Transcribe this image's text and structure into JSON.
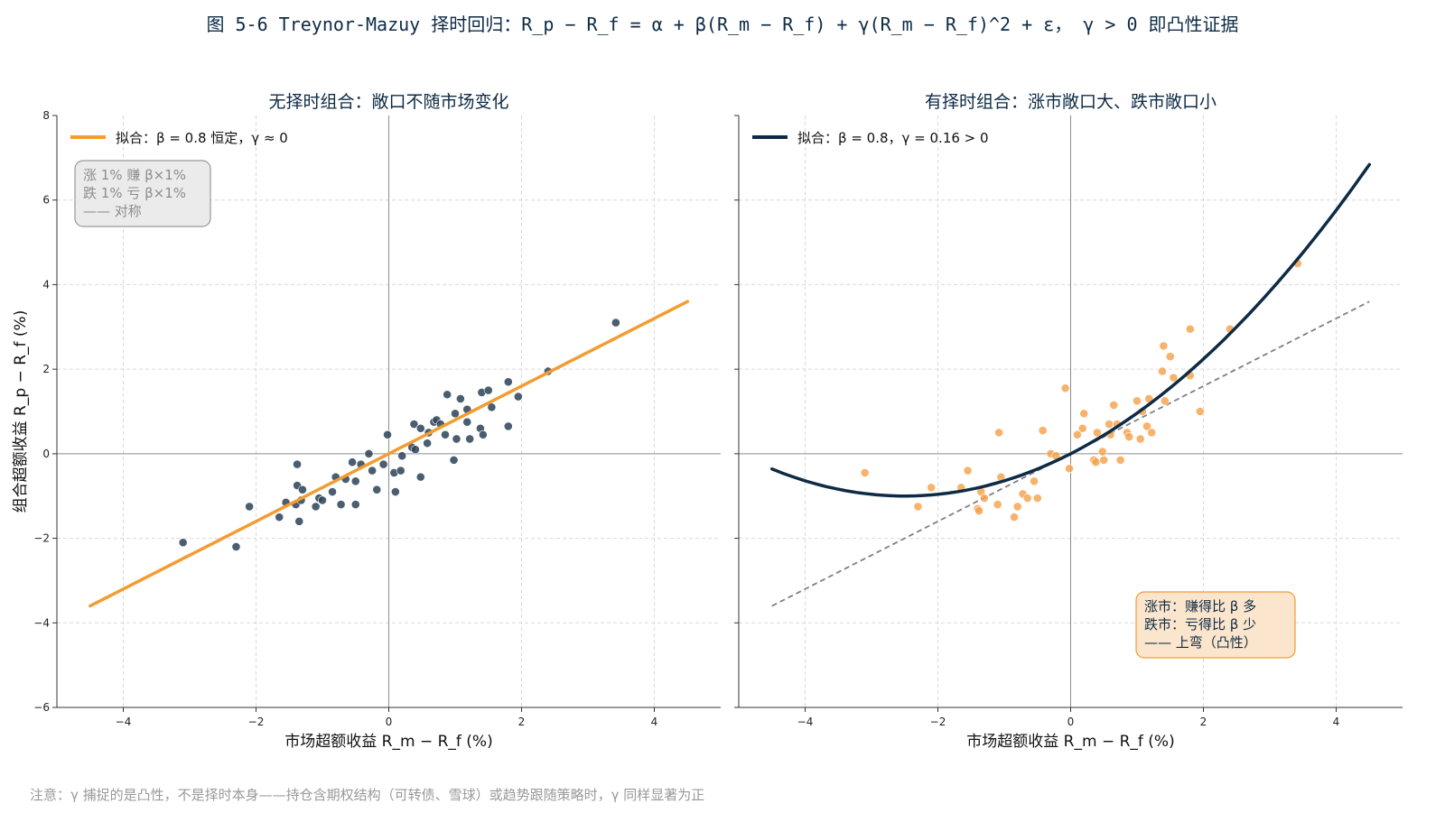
{
  "suptitle": "图 5-6 Treynor-Mazuy 择时回归：R_p − R_f = α + β(R_m − R_f) + γ(R_m − R_f)^2 + ε， γ > 0 即凸性证据",
  "footnote": "注意：γ 捕捉的是凸性，不是择时本身——持仓含期权结构（可转债、雪球）或趋势跟随策略时，γ 同样显著为正",
  "colors": {
    "title": "#0d2b45",
    "orange": "#f39c31",
    "navy": "#0d2b45",
    "points_left": "#2c4257",
    "points_right": "#f5a046",
    "grid": "#d9d9d9",
    "axis_zero": "#8c8c8c",
    "dashed": "#808080",
    "footnote": "#999999"
  },
  "chart_data": [
    {
      "type": "scatter",
      "title": "无择时组合：敞口不随市场变化",
      "xlabel": "市场超额收益 R_m − R_f (%)",
      "ylabel": "组合超额收益 R_p − R_f (%)",
      "xlim": [
        -5,
        5
      ],
      "ylim": [
        -6,
        8
      ],
      "xticks": [
        "−4",
        "−2",
        "0",
        "2",
        "4"
      ],
      "yticks": [
        "−6",
        "−4",
        "−2",
        "0",
        "2",
        "4",
        "6",
        "8"
      ],
      "grid": true,
      "legend_position": "top-left",
      "fit": {
        "name": "拟合：β = 0.8 恒定，γ ≈ 0",
        "beta": 0.8,
        "gamma": 0,
        "x_range": [
          -4.5,
          4.5
        ]
      },
      "annotation": [
        "涨 1% 赚 β×1%",
        "跌 1% 亏 β×1%",
        "—— 对称"
      ],
      "points": [
        {
          "x": -3.1,
          "y": -2.1
        },
        {
          "x": -2.3,
          "y": -2.2
        },
        {
          "x": -2.1,
          "y": -1.25
        },
        {
          "x": -1.65,
          "y": -1.5
        },
        {
          "x": -1.55,
          "y": -1.15
        },
        {
          "x": -1.4,
          "y": -1.2
        },
        {
          "x": -1.38,
          "y": -0.75
        },
        {
          "x": -1.35,
          "y": -1.6
        },
        {
          "x": -1.32,
          "y": -1.1
        },
        {
          "x": -1.3,
          "y": -0.85
        },
        {
          "x": -1.38,
          "y": -0.25
        },
        {
          "x": -1.1,
          "y": -1.25
        },
        {
          "x": -1.05,
          "y": -1.05
        },
        {
          "x": -1.0,
          "y": -1.1
        },
        {
          "x": -0.85,
          "y": -0.9
        },
        {
          "x": -0.8,
          "y": -0.55
        },
        {
          "x": -0.72,
          "y": -1.2
        },
        {
          "x": -0.65,
          "y": -0.6
        },
        {
          "x": -0.55,
          "y": -0.2
        },
        {
          "x": -0.5,
          "y": -1.2
        },
        {
          "x": -0.5,
          "y": -0.65
        },
        {
          "x": -0.42,
          "y": -0.25
        },
        {
          "x": -0.3,
          "y": 0.0
        },
        {
          "x": -0.25,
          "y": -0.4
        },
        {
          "x": -0.18,
          "y": -0.85
        },
        {
          "x": -0.08,
          "y": -0.25
        },
        {
          "x": -0.02,
          "y": 0.45
        },
        {
          "x": 0.08,
          "y": -0.45
        },
        {
          "x": 0.1,
          "y": -0.9
        },
        {
          "x": 0.18,
          "y": -0.4
        },
        {
          "x": 0.2,
          "y": -0.05
        },
        {
          "x": 0.35,
          "y": 0.15
        },
        {
          "x": 0.38,
          "y": 0.7
        },
        {
          "x": 0.4,
          "y": 0.1
        },
        {
          "x": 0.48,
          "y": 0.6
        },
        {
          "x": 0.48,
          "y": -0.55
        },
        {
          "x": 0.58,
          "y": 0.25
        },
        {
          "x": 0.6,
          "y": 0.5
        },
        {
          "x": 0.68,
          "y": 0.75
        },
        {
          "x": 0.72,
          "y": 0.8
        },
        {
          "x": 0.78,
          "y": 0.7
        },
        {
          "x": 0.85,
          "y": 0.45
        },
        {
          "x": 0.88,
          "y": 1.4
        },
        {
          "x": 0.98,
          "y": -0.15
        },
        {
          "x": 1.0,
          "y": 0.95
        },
        {
          "x": 1.02,
          "y": 0.35
        },
        {
          "x": 1.08,
          "y": 1.3
        },
        {
          "x": 1.18,
          "y": 1.05
        },
        {
          "x": 1.18,
          "y": 0.75
        },
        {
          "x": 1.22,
          "y": 0.35
        },
        {
          "x": 1.38,
          "y": 0.6
        },
        {
          "x": 1.4,
          "y": 1.45
        },
        {
          "x": 1.42,
          "y": 0.45
        },
        {
          "x": 1.5,
          "y": 1.5
        },
        {
          "x": 1.55,
          "y": 1.1
        },
        {
          "x": 1.8,
          "y": 1.7
        },
        {
          "x": 1.8,
          "y": 0.65
        },
        {
          "x": 1.95,
          "y": 1.35
        },
        {
          "x": 2.4,
          "y": 1.95
        },
        {
          "x": 3.42,
          "y": 3.1
        }
      ]
    },
    {
      "type": "scatter",
      "title": "有择时组合：涨市敞口大、跌市敞口小",
      "xlabel": "市场超额收益 R_m − R_f (%)",
      "ylabel": "",
      "xlim": [
        -5,
        5
      ],
      "ylim": [
        -6,
        8
      ],
      "xticks": [
        "−4",
        "−2",
        "0",
        "2",
        "4"
      ],
      "grid": true,
      "legend_position": "top-left",
      "fit": {
        "name": "拟合：β = 0.8，γ = 0.16 > 0",
        "beta": 0.8,
        "gamma": 0.16,
        "x_range": [
          -4.5,
          4.5
        ]
      },
      "reference_line": {
        "beta": 0.8,
        "style": "dashed",
        "x_range": [
          -4.5,
          4.5
        ]
      },
      "annotation": [
        "涨市：赚得比 β 多",
        "跌市：亏得比 β 少",
        "—— 上弯（凸性）"
      ],
      "points": [
        {
          "x": -3.1,
          "y": -0.45
        },
        {
          "x": -2.3,
          "y": -1.25
        },
        {
          "x": -2.1,
          "y": -0.8
        },
        {
          "x": -1.65,
          "y": -0.8
        },
        {
          "x": -1.55,
          "y": -0.4
        },
        {
          "x": -1.4,
          "y": -1.3
        },
        {
          "x": -1.38,
          "y": -1.35
        },
        {
          "x": -1.35,
          "y": -0.9
        },
        {
          "x": -1.3,
          "y": -1.05
        },
        {
          "x": -1.1,
          "y": -1.2
        },
        {
          "x": -1.08,
          "y": 0.5
        },
        {
          "x": -1.05,
          "y": -0.55
        },
        {
          "x": -0.85,
          "y": -1.5
        },
        {
          "x": -0.8,
          "y": -1.25
        },
        {
          "x": -0.72,
          "y": -0.95
        },
        {
          "x": -0.65,
          "y": -1.05
        },
        {
          "x": -0.55,
          "y": -0.65
        },
        {
          "x": -0.5,
          "y": -1.05
        },
        {
          "x": -0.42,
          "y": 0.55
        },
        {
          "x": -0.3,
          "y": 0.0
        },
        {
          "x": -0.22,
          "y": -0.05
        },
        {
          "x": -0.08,
          "y": 1.55
        },
        {
          "x": -0.02,
          "y": -0.35
        },
        {
          "x": 0.1,
          "y": 0.45
        },
        {
          "x": 0.18,
          "y": 0.6
        },
        {
          "x": 0.2,
          "y": 0.95
        },
        {
          "x": 0.35,
          "y": -0.15
        },
        {
          "x": 0.38,
          "y": -0.2
        },
        {
          "x": 0.4,
          "y": 0.5
        },
        {
          "x": 0.48,
          "y": 0.05
        },
        {
          "x": 0.5,
          "y": -0.15
        },
        {
          "x": 0.58,
          "y": 0.7
        },
        {
          "x": 0.6,
          "y": 0.45
        },
        {
          "x": 0.65,
          "y": 1.15
        },
        {
          "x": 0.7,
          "y": 0.7
        },
        {
          "x": 0.75,
          "y": -0.15
        },
        {
          "x": 0.85,
          "y": 0.5
        },
        {
          "x": 0.88,
          "y": 0.4
        },
        {
          "x": 1.0,
          "y": 1.25
        },
        {
          "x": 1.05,
          "y": 0.35
        },
        {
          "x": 1.08,
          "y": 1.0
        },
        {
          "x": 1.15,
          "y": 0.65
        },
        {
          "x": 1.18,
          "y": 1.3
        },
        {
          "x": 1.22,
          "y": 0.5
        },
        {
          "x": 1.38,
          "y": 1.95
        },
        {
          "x": 1.4,
          "y": 2.55
        },
        {
          "x": 1.42,
          "y": 1.25
        },
        {
          "x": 1.5,
          "y": 2.3
        },
        {
          "x": 1.55,
          "y": 1.8
        },
        {
          "x": 1.8,
          "y": 2.95
        },
        {
          "x": 1.8,
          "y": 1.85
        },
        {
          "x": 1.95,
          "y": 1.0
        },
        {
          "x": 2.4,
          "y": 2.95
        },
        {
          "x": 3.42,
          "y": 4.5
        }
      ]
    }
  ]
}
